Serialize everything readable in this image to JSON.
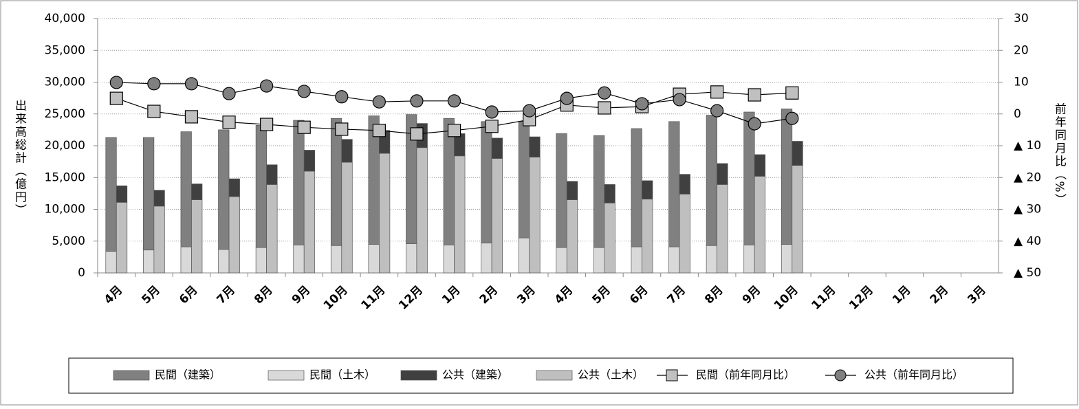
{
  "chart_data": {
    "type": "bar",
    "categories": [
      "4月",
      "5月",
      "6月",
      "7月",
      "8月",
      "9月",
      "10月",
      "11月",
      "12月",
      "1月",
      "2月",
      "3月",
      "4月",
      "5月",
      "6月",
      "7月",
      "8月",
      "9月",
      "10月",
      "11月",
      "12月",
      "1月",
      "2月",
      "3月"
    ],
    "ylabel": "出来高総計（億円）",
    "y2label": "前年同月比（%）",
    "ylim": [
      0,
      40000
    ],
    "yticks": [
      0,
      {
        "value": 5000,
        "label": "5,000"
      },
      {
        "value": 10000,
        "label": "10,000"
      },
      {
        "value": 15000,
        "label": "15,000"
      },
      {
        "value": 20000,
        "label": "20,000"
      },
      {
        "value": 25000,
        "label": "25,000"
      },
      {
        "value": 30000,
        "label": "30,000"
      },
      {
        "value": 35000,
        "label": "35,000"
      },
      {
        "value": 40000,
        "label": "40,000"
      }
    ],
    "y2lim": [
      -50,
      30
    ],
    "y2ticks": [
      {
        "value": -50,
        "label": "▲ 50"
      },
      {
        "value": -40,
        "label": "▲ 40"
      },
      {
        "value": -30,
        "label": "▲ 30"
      },
      {
        "value": -20,
        "label": "▲ 20"
      },
      {
        "value": -10,
        "label": "▲ 10"
      },
      0,
      10,
      20,
      30
    ],
    "grid": true,
    "series": [
      {
        "name": "民間（建築）",
        "color": "#808080",
        "values": [
          17900,
          17700,
          18100,
          18800,
          19200,
          19600,
          20000,
          20200,
          20300,
          19900,
          19100,
          18300,
          17900,
          17600,
          18600,
          19700,
          20500,
          20900,
          21300,
          null,
          null,
          null,
          null,
          null
        ]
      },
      {
        "name": "民間（土木）",
        "color": "#d9d9d9",
        "values": [
          3400,
          3600,
          4100,
          3700,
          4000,
          4400,
          4300,
          4500,
          4600,
          4400,
          4700,
          5500,
          4000,
          4000,
          4100,
          4100,
          4300,
          4400,
          4500,
          null,
          null,
          null,
          null,
          null
        ]
      },
      {
        "name": "公共（建築）",
        "color": "#404040",
        "values": [
          2600,
          2500,
          2500,
          2800,
          3100,
          3300,
          3600,
          3600,
          3800,
          3500,
          3200,
          3200,
          2900,
          2900,
          2900,
          3100,
          3300,
          3400,
          3800,
          null,
          null,
          null,
          null,
          null
        ]
      },
      {
        "name": "公共（土木）",
        "color": "#bfbfbf",
        "values": [
          11100,
          10500,
          11500,
          12000,
          13900,
          16000,
          17400,
          18800,
          19700,
          18400,
          18000,
          18200,
          11500,
          11000,
          11600,
          12400,
          13900,
          15200,
          16900,
          null,
          null,
          null,
          null,
          null
        ]
      },
      {
        "name": "民間（前年同月比）",
        "type": "line",
        "marker": "square",
        "color": "#c0c0c0",
        "axis": "y2",
        "values": [
          4.9,
          0.8,
          -0.9,
          -2.6,
          -3.3,
          -4.2,
          -4.8,
          -5.2,
          -6.3,
          -5.2,
          -3.9,
          -1.8,
          2.8,
          1.9,
          2.3,
          6.2,
          6.9,
          6.0,
          6.6,
          null,
          null,
          null,
          null,
          null
        ]
      },
      {
        "name": "公共（前年同月比）",
        "type": "line",
        "marker": "circle",
        "color": "#808080",
        "axis": "y2",
        "values": [
          9.9,
          9.5,
          9.5,
          6.4,
          8.8,
          7.1,
          5.4,
          3.8,
          4.1,
          4.1,
          0.6,
          1.0,
          4.9,
          6.6,
          3.2,
          4.5,
          1.0,
          -3.1,
          -1.4,
          null,
          null,
          null,
          null,
          null
        ]
      }
    ]
  }
}
